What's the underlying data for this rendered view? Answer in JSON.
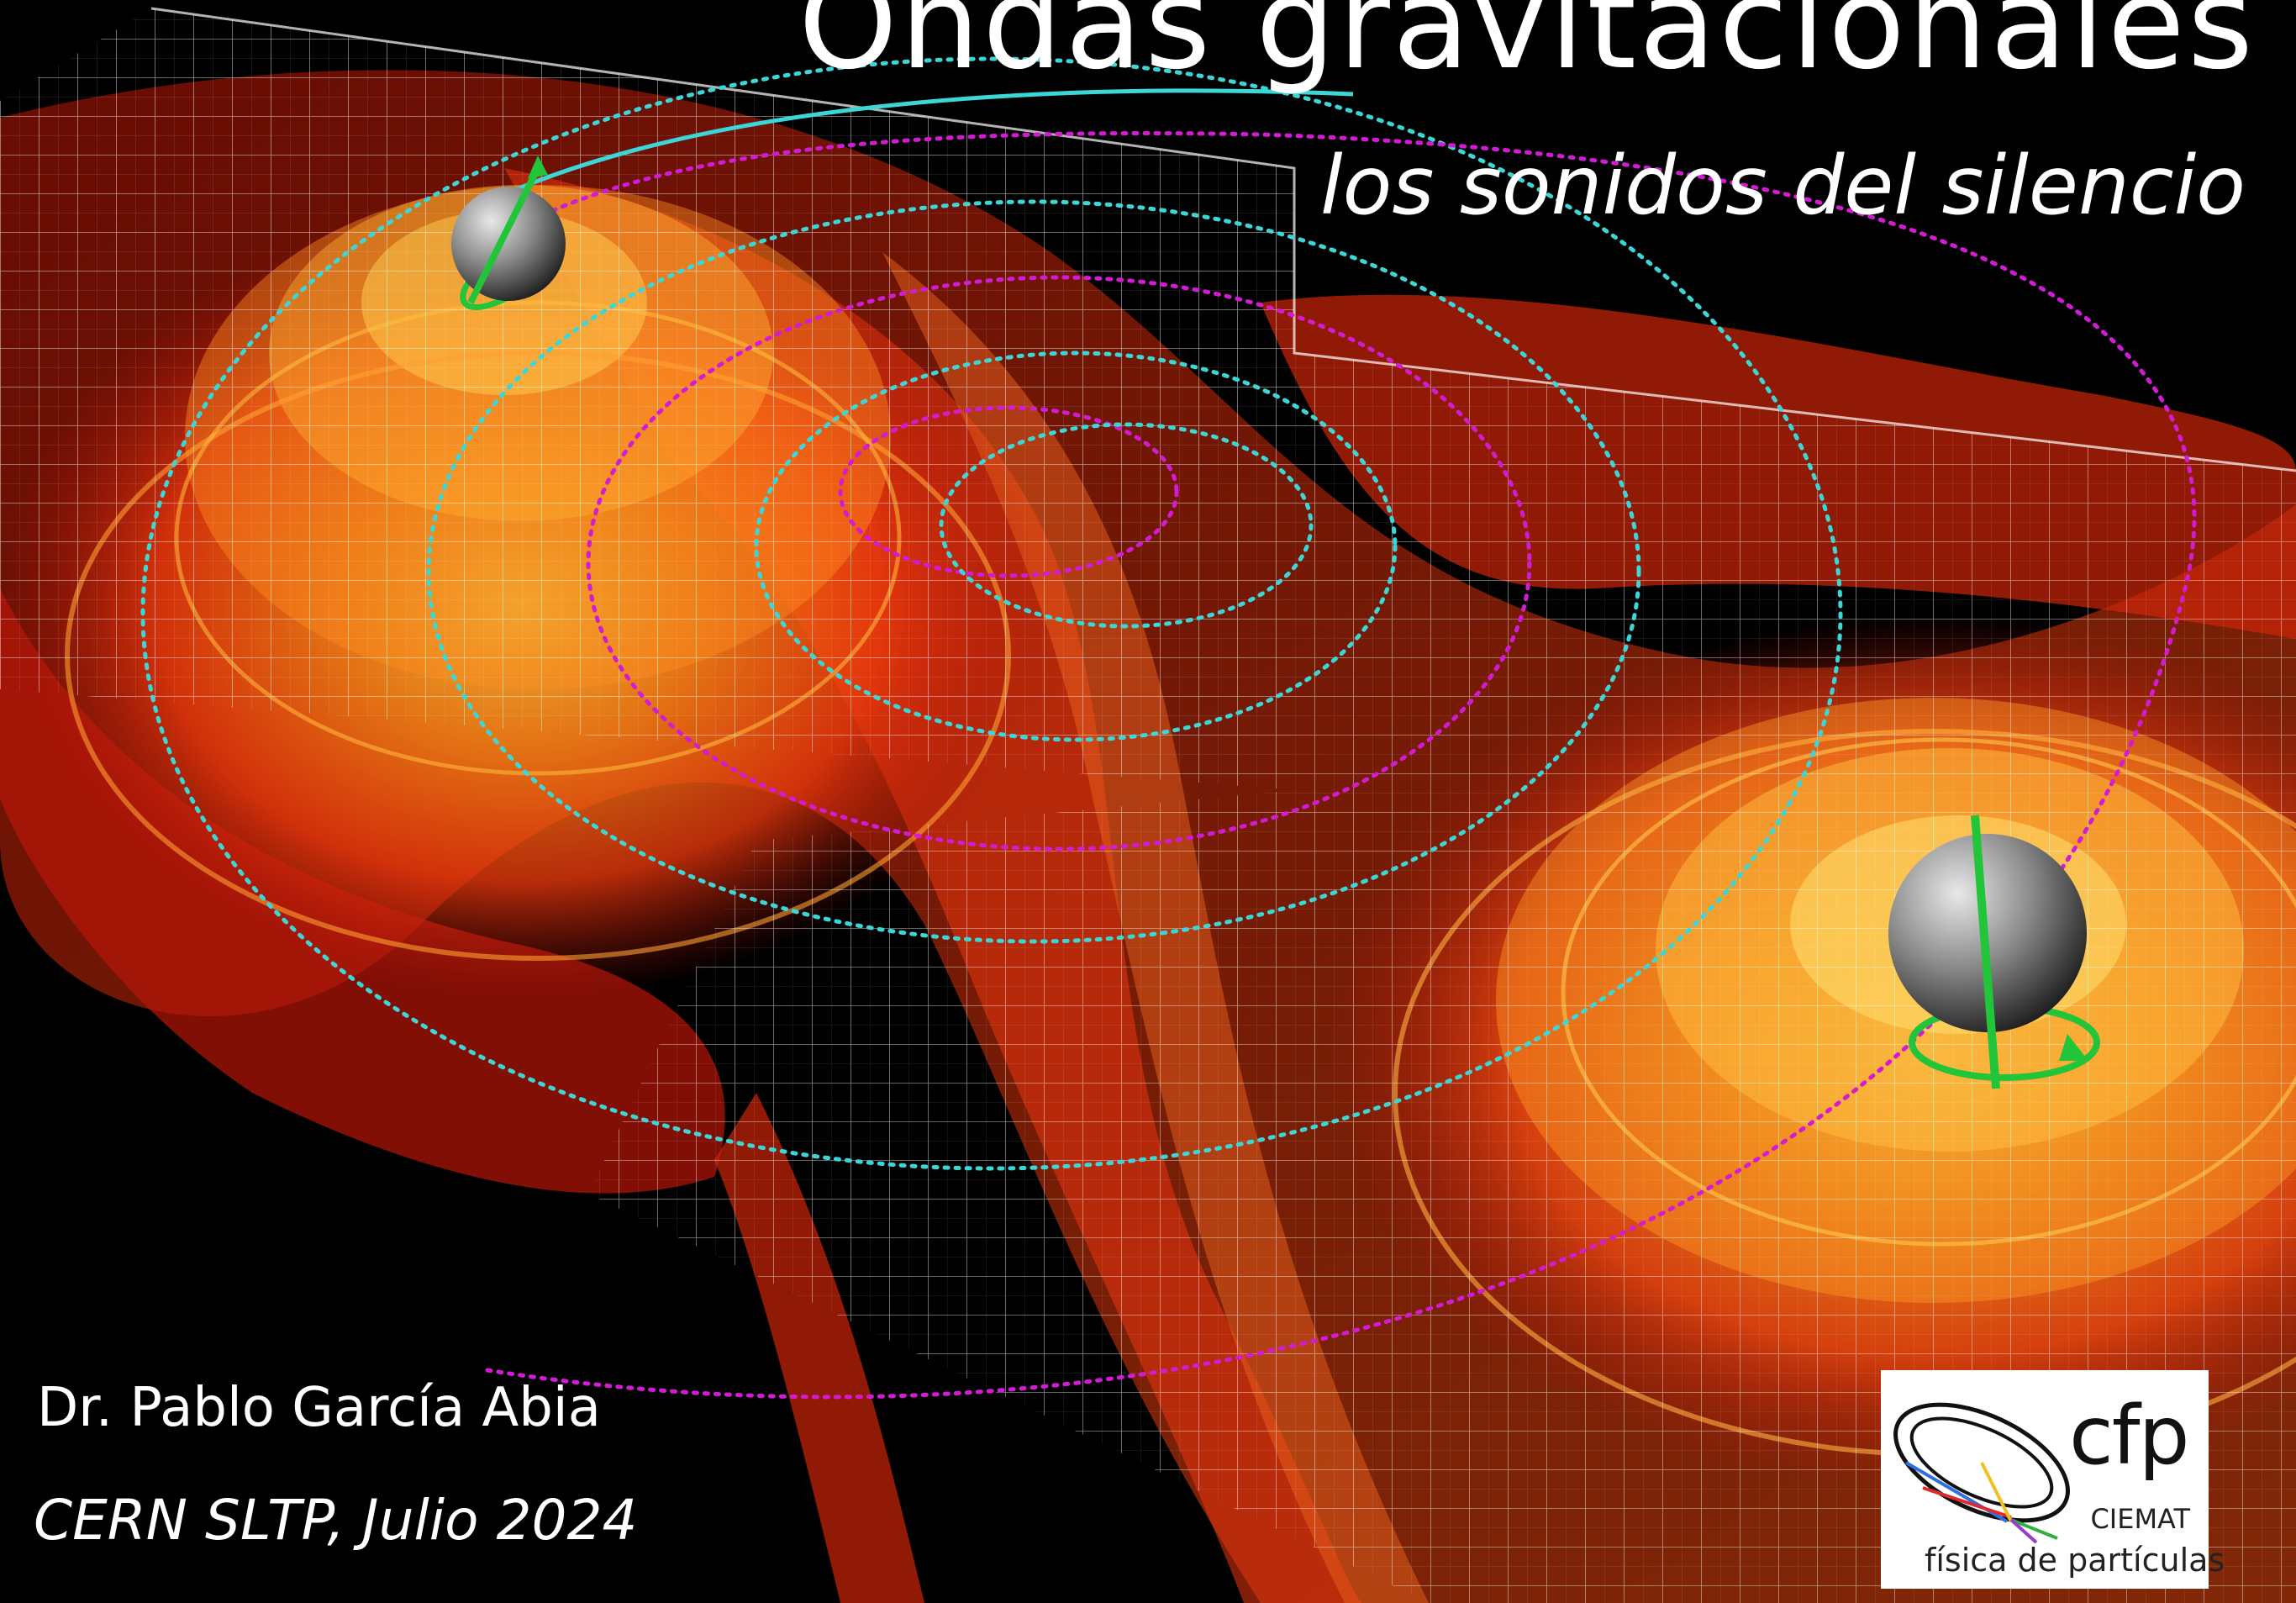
{
  "slide": {
    "title": "Ondas gravitacionales",
    "subtitle": "los sonidos del silencio",
    "author": "Dr. Pablo García Abia",
    "event": "CERN SLTP,  Julio 2024"
  },
  "logo": {
    "letters": "cfp",
    "organization": "CIEMAT",
    "tagline": "física de partículas"
  },
  "illustration": {
    "subject": "binary-black-hole-gravitational-waves",
    "icons": [
      "black-hole-sphere-icon",
      "spin-arrow-icon",
      "orbit-trail-icon"
    ]
  },
  "colors": {
    "background": "#000000",
    "wave_red": "#e0200a",
    "wave_orange": "#ff7a10",
    "wave_yellow": "#ffd040",
    "grid": "#ffffff",
    "orbit_cyan": "#3cd6d6",
    "orbit_magenta": "#d21bd2",
    "spin_green": "#22c43a"
  }
}
